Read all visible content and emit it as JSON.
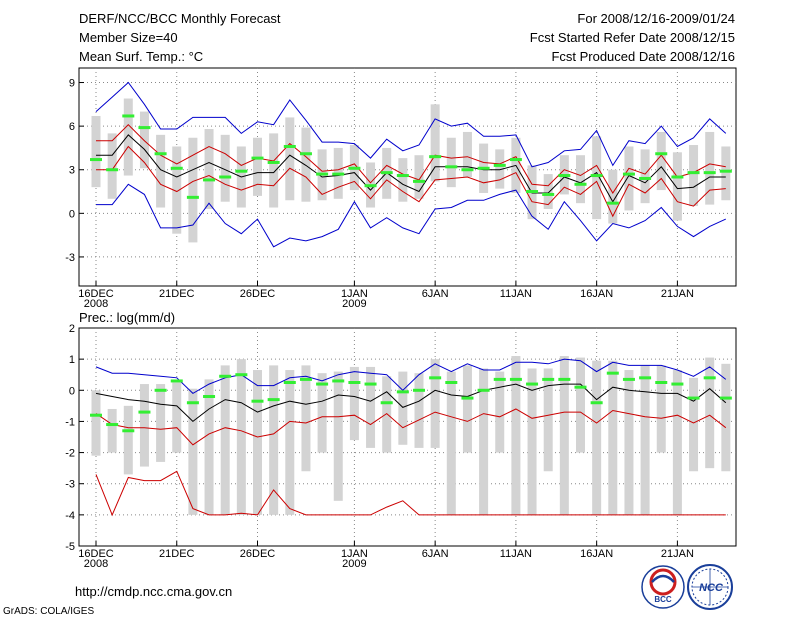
{
  "header": {
    "title": "DERF/NCC/BCC Monthly Forecast",
    "member_size": "Member Size=40",
    "variable1": "Mean Surf. Temp.: °C",
    "period": "For 2008/12/16-2009/01/24",
    "fcst_started": "Fcst Started Refer Date 2008/12/15",
    "fcst_produced": "Fcst Produced Date 2008/12/16"
  },
  "footer": {
    "url": "http://cmdp.ncc.cma.gov.cn",
    "grads": "GrADS: COLA/IGES",
    "logo_bcc": "BCC",
    "logo_ncc": "NCC"
  },
  "x_ticks": [
    {
      "day": 0,
      "label": "16DEC",
      "sub": "2008"
    },
    {
      "day": 5,
      "label": "21DEC",
      "sub": ""
    },
    {
      "day": 10,
      "label": "26DEC",
      "sub": ""
    },
    {
      "day": 16,
      "label": "1JAN",
      "sub": "2009"
    },
    {
      "day": 21,
      "label": "6JAN",
      "sub": ""
    },
    {
      "day": 26,
      "label": "11JAN",
      "sub": ""
    },
    {
      "day": 31,
      "label": "16JAN",
      "sub": ""
    },
    {
      "day": 36,
      "label": "21JAN",
      "sub": ""
    }
  ],
  "colors": {
    "envelope": "#0000cc",
    "spread": "#cc0000",
    "mean": "#000000",
    "observed": "#33ee33",
    "box": "#d3d3d3",
    "grid": "#888888"
  },
  "chart_data": [
    {
      "type": "line",
      "name": "temperature",
      "title": "Mean Surf. Temp.: °C",
      "ylabel": "°C",
      "ylim": [
        -5,
        10
      ],
      "yticks": [
        -3,
        0,
        3,
        6,
        9
      ],
      "x": [
        0,
        1,
        2,
        3,
        4,
        5,
        6,
        7,
        8,
        9,
        10,
        11,
        12,
        13,
        14,
        15,
        16,
        17,
        18,
        19,
        20,
        21,
        22,
        23,
        24,
        25,
        26,
        27,
        28,
        29,
        30,
        31,
        32,
        33,
        34,
        35,
        36,
        37,
        38,
        39
      ],
      "series": [
        {
          "name": "max",
          "color": "#0000cc",
          "values": [
            7.0,
            8.0,
            9.0,
            7.5,
            5.8,
            5.8,
            6.6,
            6.6,
            6.6,
            5.5,
            6.3,
            6.1,
            7.8,
            6.4,
            4.9,
            4.9,
            4.8,
            3.8,
            5.1,
            4.3,
            4.7,
            6.5,
            6.0,
            6.2,
            5.3,
            5.3,
            5.4,
            3.2,
            3.5,
            4.3,
            4.4,
            5.7,
            3.3,
            5.0,
            4.8,
            6.0,
            4.6,
            5.2,
            6.5,
            5.5
          ]
        },
        {
          "name": "upper",
          "color": "#cc0000",
          "values": [
            5.0,
            5.0,
            6.1,
            5.0,
            4.0,
            3.4,
            4.0,
            4.6,
            4.1,
            3.3,
            3.8,
            3.6,
            4.8,
            3.9,
            2.9,
            3.0,
            3.4,
            2.1,
            3.3,
            2.7,
            2.3,
            4.0,
            3.8,
            3.9,
            3.5,
            3.4,
            3.9,
            2.0,
            1.9,
            3.0,
            2.6,
            3.3,
            1.4,
            3.1,
            2.7,
            4.0,
            2.5,
            2.8,
            3.4,
            3.2
          ]
        },
        {
          "name": "mean",
          "color": "#000000",
          "values": [
            4.0,
            4.0,
            5.4,
            4.4,
            3.0,
            2.5,
            3.0,
            3.5,
            3.0,
            2.5,
            2.8,
            2.8,
            4.0,
            3.3,
            2.5,
            2.6,
            2.8,
            1.6,
            2.8,
            2.0,
            1.5,
            3.2,
            3.2,
            3.2,
            3.0,
            3.0,
            3.3,
            1.4,
            1.4,
            2.5,
            2.1,
            2.8,
            0.8,
            2.6,
            2.1,
            3.2,
            1.7,
            1.8,
            2.5,
            2.5
          ]
        },
        {
          "name": "lower",
          "color": "#cc0000",
          "values": [
            3.0,
            3.0,
            4.6,
            3.5,
            2.0,
            1.5,
            2.2,
            2.6,
            2.0,
            1.6,
            2.0,
            1.9,
            3.1,
            2.5,
            1.3,
            1.8,
            2.2,
            1.0,
            2.3,
            1.5,
            0.8,
            2.3,
            2.4,
            2.5,
            2.1,
            2.3,
            2.8,
            0.8,
            0.6,
            1.8,
            1.3,
            2.2,
            -0.2,
            2.0,
            1.4,
            2.4,
            0.8,
            0.5,
            1.6,
            1.7
          ]
        },
        {
          "name": "min",
          "color": "#0000cc",
          "values": [
            0.6,
            0.6,
            2.0,
            1.3,
            -1.0,
            -1.0,
            -0.8,
            0.7,
            -0.7,
            -1.4,
            -0.4,
            -2.3,
            -1.7,
            -1.9,
            -1.6,
            -1.1,
            0.8,
            -1.0,
            -0.3,
            -1.0,
            -1.4,
            0.3,
            0.4,
            0.9,
            0.9,
            1.3,
            1.6,
            -0.2,
            -1.1,
            0.8,
            -0.5,
            -1.9,
            -0.7,
            -1.0,
            -0.5,
            0.4,
            -0.9,
            -1.6,
            -0.9,
            -0.4
          ]
        },
        {
          "name": "observed",
          "color": "#33ee33",
          "values": [
            3.7,
            3.0,
            6.7,
            5.9,
            4.1,
            3.1,
            1.1,
            2.3,
            2.5,
            2.9,
            3.8,
            3.5,
            4.6,
            4.1,
            2.7,
            2.7,
            3.1,
            1.9,
            2.8,
            2.6,
            2.2,
            3.9,
            3.2,
            3.0,
            3.1,
            3.3,
            3.7,
            1.5,
            1.3,
            2.6,
            2.0,
            2.6,
            0.7,
            2.7,
            2.4,
            4.1,
            2.5,
            2.8,
            2.8,
            2.9
          ]
        }
      ],
      "box_top": [
        6.7,
        5.5,
        7.9,
        7.0,
        5.4,
        4.6,
        5.2,
        5.8,
        5.4,
        4.6,
        5.2,
        5.5,
        6.6,
        5.9,
        4.4,
        4.5,
        4.7,
        3.5,
        4.5,
        3.8,
        4.0,
        7.5,
        5.2,
        5.6,
        4.8,
        4.4,
        5.2,
        3.3,
        2.7,
        4.0,
        4.0,
        5.3,
        3.0,
        4.6,
        4.4,
        5.6,
        4.2,
        4.7,
        5.6,
        4.6
      ],
      "box_bottom": [
        1.8,
        1.0,
        2.6,
        3.1,
        0.4,
        -1.4,
        -2.0,
        0.3,
        0.8,
        0.4,
        1.2,
        0.4,
        0.9,
        0.8,
        0.9,
        1.0,
        1.6,
        0.4,
        1.0,
        0.8,
        1.0,
        2.2,
        1.8,
        2.5,
        1.4,
        1.7,
        1.4,
        -0.4,
        0.3,
        1.3,
        0.7,
        -0.4,
        -0.7,
        0.2,
        0.7,
        1.6,
        -0.5,
        0.5,
        0.6,
        0.9
      ]
    },
    {
      "type": "line",
      "name": "precipitation",
      "title": "Prec.: log(mm/d)",
      "ylabel": "log(mm/d)",
      "ylim": [
        -5,
        2
      ],
      "yticks": [
        -5,
        -4,
        -3,
        -2,
        -1,
        0,
        1,
        2
      ],
      "x": [
        0,
        1,
        2,
        3,
        4,
        5,
        6,
        7,
        8,
        9,
        10,
        11,
        12,
        13,
        14,
        15,
        16,
        17,
        18,
        19,
        20,
        21,
        22,
        23,
        24,
        25,
        26,
        27,
        28,
        29,
        30,
        31,
        32,
        33,
        34,
        35,
        36,
        37,
        38,
        39
      ],
      "series": [
        {
          "name": "max",
          "color": "#0000cc",
          "values": [
            0.75,
            0.55,
            0.55,
            0.5,
            0.45,
            0.4,
            -0.1,
            0.2,
            0.4,
            0.5,
            0.15,
            0.15,
            0.4,
            0.45,
            0.3,
            0.5,
            0.6,
            0.55,
            0.5,
            0.0,
            0.5,
            0.85,
            0.6,
            0.85,
            0.65,
            0.65,
            0.9,
            0.9,
            0.85,
            1.0,
            0.95,
            0.6,
            0.9,
            0.8,
            0.8,
            0.8,
            0.65,
            0.45,
            0.75,
            0.35
          ]
        },
        {
          "name": "upper",
          "color": "#000000",
          "values": [
            -0.1,
            -0.2,
            -0.3,
            -0.35,
            -0.45,
            -0.5,
            -1.0,
            -0.6,
            -0.3,
            -0.4,
            -0.7,
            -0.5,
            -0.35,
            -0.45,
            -0.35,
            -0.15,
            -0.2,
            -0.35,
            -0.05,
            -0.55,
            -0.35,
            0.0,
            -0.15,
            -0.2,
            0.0,
            0.1,
            0.2,
            0.0,
            0.15,
            0.2,
            0.2,
            -0.3,
            0.1,
            0.0,
            -0.05,
            -0.1,
            -0.1,
            -0.35,
            0.05,
            -0.4
          ]
        },
        {
          "name": "lower",
          "color": "#cc0000",
          "values": [
            -0.75,
            -1.1,
            -1.2,
            -1.2,
            -1.25,
            -1.2,
            -1.75,
            -1.4,
            -1.2,
            -1.3,
            -1.5,
            -1.4,
            -1.0,
            -1.05,
            -0.85,
            -0.85,
            -0.8,
            -1.1,
            -0.75,
            -1.2,
            -0.95,
            -0.7,
            -0.85,
            -1.0,
            -0.75,
            -0.85,
            -0.6,
            -0.9,
            -0.8,
            -0.7,
            -0.7,
            -1.05,
            -0.65,
            -0.75,
            -0.85,
            -0.9,
            -0.8,
            -1.05,
            -0.8,
            -1.2
          ]
        },
        {
          "name": "min_red",
          "color": "#cc0000",
          "values": [
            -2.7,
            -4.0,
            -2.8,
            -2.9,
            -2.9,
            -2.6,
            -3.8,
            -4.0,
            -4.0,
            -3.95,
            -4.0,
            -3.2,
            -3.8,
            -4.0,
            -4.0,
            -4.0,
            -4.0,
            -4.0,
            -3.75,
            -3.55,
            -4.0,
            -4.0,
            -4.0,
            -4.0,
            -4.0,
            -4.0,
            -4.0,
            -4.0,
            -4.0,
            -4.0,
            -4.0,
            -4.0,
            -4.0,
            -4.0,
            -4.0,
            -4.0,
            -4.0,
            -4.0,
            -4.0,
            -4.0
          ]
        },
        {
          "name": "observed",
          "color": "#33ee33",
          "values": [
            -0.8,
            -1.1,
            -1.3,
            -0.7,
            0.0,
            0.3,
            -0.4,
            -0.2,
            0.45,
            0.5,
            -0.35,
            -0.3,
            0.25,
            0.35,
            0.2,
            0.3,
            0.25,
            0.2,
            -0.4,
            -0.05,
            0.0,
            0.4,
            0.25,
            -0.25,
            0.0,
            0.35,
            0.35,
            0.2,
            0.35,
            0.35,
            0.1,
            -0.4,
            0.55,
            0.35,
            0.4,
            0.25,
            0.2,
            -0.25,
            0.4,
            -0.25
          ]
        }
      ],
      "box_top": [
        0.0,
        -0.6,
        -0.5,
        0.2,
        0.2,
        0.25,
        0.05,
        0.35,
        0.8,
        1.0,
        0.65,
        0.8,
        0.65,
        0.8,
        0.55,
        0.6,
        0.75,
        0.75,
        0.45,
        0.6,
        0.55,
        1.0,
        0.6,
        0.8,
        0.7,
        0.6,
        1.1,
        0.7,
        0.7,
        1.1,
        1.05,
        0.95,
        0.95,
        0.65,
        0.8,
        0.8,
        0.65,
        0.4,
        1.05,
        0.85
      ],
      "box_bottom": [
        -2.1,
        -2.0,
        -2.7,
        -2.45,
        -2.3,
        -2.0,
        -4.0,
        -4.0,
        -4.0,
        -4.0,
        -4.0,
        -4.0,
        -4.0,
        -2.6,
        -2.0,
        -3.55,
        -1.6,
        -1.85,
        -2.0,
        -1.75,
        -1.85,
        -1.85,
        -4.0,
        -2.0,
        -4.0,
        -2.0,
        -4.0,
        -4.0,
        -2.6,
        -4.0,
        -2.0,
        -4.0,
        -4.0,
        -4.0,
        -4.0,
        -2.0,
        -4.0,
        -2.6,
        -2.5,
        -2.6
      ]
    }
  ]
}
